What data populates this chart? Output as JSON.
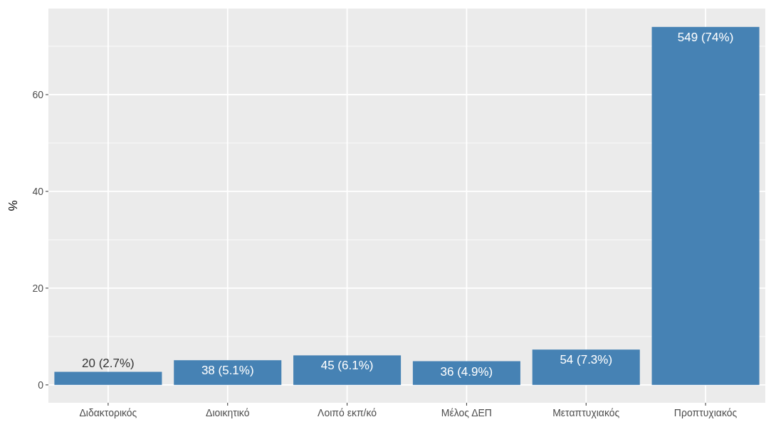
{
  "chart_data": {
    "type": "bar",
    "ylabel": "%",
    "categories": [
      "Διδακτορικός",
      "Διοικητικό",
      "Λοιπό εκπ/κό",
      "Μέλος ΔΕΠ",
      "Μεταπτυχιακός",
      "Προπτυχιακός"
    ],
    "values": [
      2.7,
      5.1,
      6.1,
      4.9,
      7.3,
      74
    ],
    "value_labels": [
      "20 (2.7%)",
      "38 (5.1%)",
      "45 (6.1%)",
      "36 (4.9%)",
      "54 (7.3%)",
      "549 (74%)"
    ],
    "color": "#4682b4",
    "ylim": [
      -3.7,
      77.8
    ],
    "yticks": [
      0,
      20,
      40,
      60
    ],
    "grid": true
  }
}
